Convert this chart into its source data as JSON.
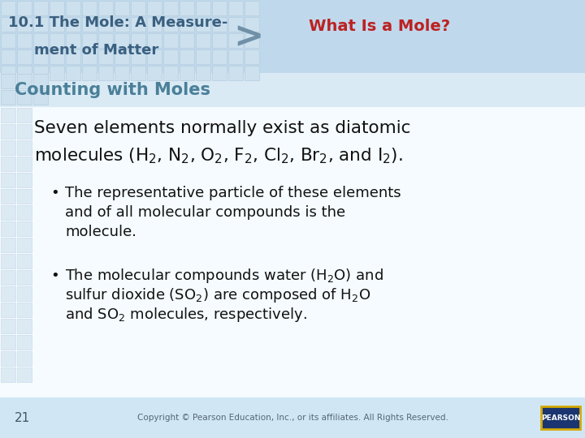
{
  "bg_color": "#ccdde8",
  "header_bg": "#bdd5e8",
  "grid_cell": "#c2d8e8",
  "grid_border": "#adc8d8",
  "header_left_line1": "10.1 The Mole: A Measure-",
  "header_left_line2": "      ment of Matter",
  "header_left_color": "#3a6080",
  "arrow_color": "#7090a8",
  "header_right": "What Is a Mole?",
  "header_right_color": "#bb2222",
  "section_title": "Counting with Moles",
  "section_color": "#4a8098",
  "main_line1": "Seven elements normally exist as diatomic",
  "main_line2": "molecules ($\\mathdefault{H_2}$, $\\mathdefault{N_2}$, $\\mathdefault{O_2}$, $\\mathdefault{F_2}$, $\\mathdefault{Cl_2}$, $\\mathdefault{Br_2}$, and $\\mathdefault{I_2}$).",
  "main_color": "#111111",
  "b1l1": "The representative particle of these elements",
  "b1l2": "and of all molecular compounds is the",
  "b1l3": "molecule.",
  "b2l1": "The molecular compounds water ($\\mathdefault{H_2}$O) and",
  "b2l2": "sulfur dioxide ($\\mathdefault{SO_2}$) are composed of $\\mathdefault{H_2}$O",
  "b2l3": "and $\\mathdefault{SO_2}$ molecules, respectively.",
  "footer_num": "21",
  "footer_copy": "Copyright © Pearson Education, Inc., or its affiliates. All Rights Reserved.",
  "footer_text_color": "#445566",
  "pearson_bg": "#1a3570",
  "pearson_border": "#d4a800",
  "pearson_text": "PEARSON"
}
